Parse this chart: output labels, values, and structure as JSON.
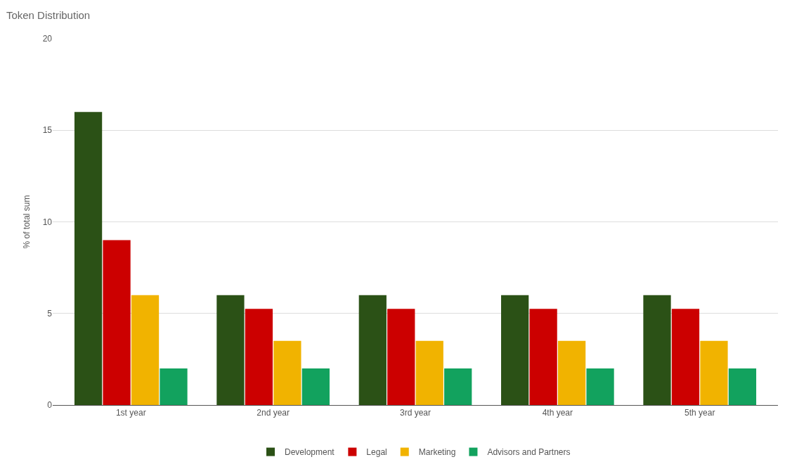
{
  "chart_data": {
    "type": "bar",
    "title": "Token Distribution",
    "ylabel": "% of total sum",
    "categories": [
      "1st year",
      "2nd year",
      "3rd year",
      "4th year",
      "5th year"
    ],
    "series": [
      {
        "name": "Development",
        "color": "#2b5116",
        "values": [
          16,
          6,
          6,
          6,
          6
        ]
      },
      {
        "name": "Legal",
        "color": "#cc0000",
        "values": [
          9,
          5.25,
          5.25,
          5.25,
          5.25
        ]
      },
      {
        "name": "Marketing",
        "color": "#f1b300",
        "values": [
          6,
          3.5,
          3.5,
          3.5,
          3.5
        ]
      },
      {
        "name": "Advisors and Partners",
        "color": "#12a25e",
        "values": [
          2,
          2,
          2,
          2,
          2
        ]
      }
    ],
    "ylim": [
      0,
      20
    ],
    "yticks": [
      0,
      5,
      10,
      15,
      20
    ],
    "grid": "y",
    "legend": "bottom"
  }
}
